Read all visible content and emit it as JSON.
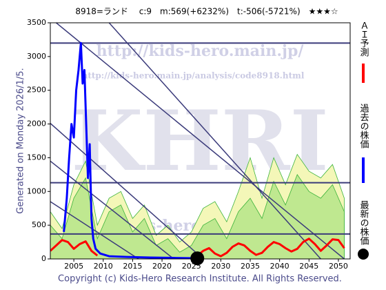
{
  "chart_data": {
    "type": "line",
    "title": "8918=ランド　 c:9　m:569(+6232%)　t:-506(-5721%)　★★★☆",
    "subtitle": "Generated on Monday 2026/1/5.",
    "footer": "Copyright (c) Kids-Hero Research Institute. All Rights Reserved.",
    "watermarks": [
      "http://kids-hero.main.jp/",
      "http://kids-hero.main.jp/analysis/code8918.html",
      "KHRI",
      "o@kids-hero"
    ],
    "xlim": [
      2001,
      2052
    ],
    "ylim": [
      0,
      3500
    ],
    "xticks": [
      2005,
      2010,
      2015,
      2020,
      2025,
      2030,
      2035,
      2040,
      2045,
      2050
    ],
    "yticks": [
      0,
      500,
      1000,
      1500,
      2000,
      2500,
      3000,
      3500
    ],
    "areas": [
      {
        "color": "#f4f7b8",
        "x": [
          2001,
          2003,
          2005,
          2007,
          2009,
          2011,
          2013,
          2015,
          2017,
          2019,
          2021,
          2023,
          2025,
          2027,
          2029,
          2031,
          2033,
          2035,
          2037,
          2039,
          2041,
          2043,
          2045,
          2047,
          2049,
          2051
        ],
        "values": [
          700,
          450,
          1100,
          1450,
          500,
          900,
          1000,
          600,
          800,
          350,
          500,
          250,
          400,
          750,
          850,
          550,
          1000,
          1500,
          900,
          1500,
          1100,
          1550,
          1300,
          1200,
          1400,
          900
        ]
      },
      {
        "color": "#bfe890",
        "x": [
          2001,
          2003,
          2005,
          2007,
          2009,
          2011,
          2013,
          2015,
          2017,
          2019,
          2021,
          2023,
          2025,
          2027,
          2029,
          2031,
          2033,
          2035,
          2037,
          2039,
          2041,
          2043,
          2045,
          2047,
          2049,
          2051
        ],
        "values": [
          500,
          300,
          900,
          1200,
          300,
          700,
          800,
          400,
          600,
          200,
          300,
          100,
          200,
          500,
          600,
          300,
          700,
          900,
          600,
          1150,
          800,
          1250,
          1000,
          900,
          1100,
          700
        ]
      }
    ],
    "hlines": [
      3200,
      1130,
      370
    ],
    "trend_lines": [
      {
        "x": [
          2002,
          2051
        ],
        "values": [
          3500,
          0
        ]
      },
      {
        "x": [
          2001,
          2027
        ],
        "values": [
          2010,
          0
        ]
      },
      {
        "x": [
          2001,
          2022
        ],
        "values": [
          1450,
          0
        ]
      },
      {
        "x": [
          2001,
          2016
        ],
        "values": [
          850,
          0
        ]
      },
      {
        "x": [
          2011,
          2047
        ],
        "values": [
          3500,
          0
        ]
      }
    ],
    "series": [
      {
        "name": "ＡＩ予測",
        "color": "#ff0000",
        "x": [
          2001,
          2002,
          2003,
          2004,
          2005,
          2006,
          2007,
          2008,
          2009,
          2010,
          2026,
          2027,
          2028,
          2029,
          2030,
          2031,
          2032,
          2033,
          2034,
          2035,
          2036,
          2037,
          2038,
          2039,
          2040,
          2041,
          2042,
          2043,
          2044,
          2045,
          2046,
          2047,
          2048,
          2049,
          2050,
          2051
        ],
        "values": [
          120,
          200,
          280,
          250,
          150,
          220,
          260,
          120,
          50,
          null,
          50,
          120,
          160,
          80,
          40,
          90,
          180,
          230,
          200,
          120,
          60,
          90,
          180,
          250,
          220,
          160,
          110,
          150,
          250,
          300,
          220,
          120,
          200,
          290,
          280,
          160
        ]
      },
      {
        "name": "過去の株価",
        "color": "#0000ff",
        "x": [
          2003.3,
          2003.8,
          2004.2,
          2004.6,
          2005,
          2005.4,
          2005.8,
          2006.2,
          2006.5,
          2006.8,
          2007.1,
          2007.4,
          2007.7,
          2008,
          2008.3,
          2008.7,
          2009.5,
          2011,
          2014,
          2018,
          2022,
          2025.5
        ],
        "values": [
          400,
          900,
          1500,
          2000,
          1800,
          2500,
          2800,
          3200,
          2600,
          2800,
          2000,
          1200,
          1700,
          600,
          300,
          150,
          80,
          40,
          30,
          20,
          15,
          10
        ]
      },
      {
        "name": "最新の株価",
        "color": "#000000",
        "x": [
          2026
        ],
        "values": [
          9
        ]
      }
    ]
  }
}
